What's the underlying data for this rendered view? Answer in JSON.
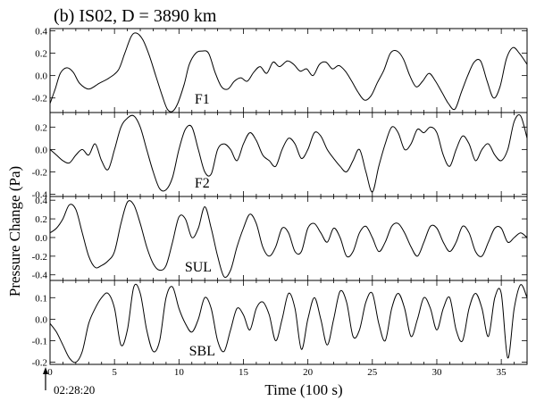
{
  "chart_data": {
    "type": "line",
    "title": "(b) IS02, D = 3890 km",
    "xlabel": "Time (100 s)",
    "ylabel": "Pressure Change (Pa)",
    "start_time": "02:28:20",
    "xlim": [
      0,
      37
    ],
    "xticks": [
      0,
      5,
      10,
      15,
      20,
      25,
      30,
      35
    ],
    "panels": [
      {
        "name": "F1",
        "ylim": [
          -0.33,
          0.42
        ],
        "yticks": [
          -0.2,
          0,
          0.2,
          0.4
        ],
        "ytick_labels": [
          "-0.2",
          "0.0",
          "0.2",
          "0.4"
        ],
        "x": [
          0,
          0.4,
          0.8,
          1.3,
          1.8,
          2.3,
          3,
          3.8,
          4.6,
          5.3,
          5.8,
          6.3,
          6.7,
          7.2,
          7.7,
          8.2,
          8.7,
          9.1,
          9.5,
          9.9,
          10.4,
          10.8,
          11.3,
          11.8,
          12.3,
          12.8,
          13.3,
          13.8,
          14.3,
          14.8,
          15.3,
          15.8,
          16.3,
          16.8,
          17.3,
          17.8,
          18.4,
          18.9,
          19.4,
          19.9,
          20.4,
          20.9,
          21.4,
          21.9,
          22.4,
          22.9,
          23.4,
          23.9,
          24.4,
          24.9,
          25.4,
          25.9,
          26.4,
          26.9,
          27.4,
          27.9,
          28.4,
          28.9,
          29.4,
          29.9,
          30.4,
          30.9,
          31.4,
          31.9,
          32.4,
          32.9,
          33.4,
          33.9,
          34.4,
          34.9,
          35.4,
          35.9,
          36.4,
          37
        ],
        "y": [
          -0.25,
          -0.12,
          0.02,
          0.07,
          0.03,
          -0.07,
          -0.12,
          -0.07,
          -0.02,
          0.05,
          0.2,
          0.35,
          0.38,
          0.32,
          0.18,
          0.0,
          -0.18,
          -0.3,
          -0.32,
          -0.25,
          -0.08,
          0.1,
          0.2,
          0.22,
          0.2,
          0.03,
          -0.1,
          -0.12,
          -0.05,
          -0.02,
          -0.05,
          0.03,
          0.08,
          0.02,
          0.12,
          0.08,
          0.13,
          0.1,
          0.04,
          0.06,
          0.0,
          0.1,
          0.12,
          0.06,
          0.09,
          0.04,
          -0.05,
          -0.15,
          -0.22,
          -0.18,
          -0.06,
          0.05,
          0.2,
          0.22,
          0.15,
          0.0,
          -0.1,
          -0.05,
          0.02,
          -0.05,
          -0.15,
          -0.25,
          -0.3,
          -0.15,
          0.0,
          0.12,
          0.13,
          -0.05,
          -0.2,
          -0.1,
          0.15,
          0.25,
          0.2,
          0.1
        ]
      },
      {
        "name": "F2",
        "ylim": [
          -0.42,
          0.33
        ],
        "yticks": [
          -0.4,
          -0.2,
          0,
          0.2
        ],
        "ytick_labels": [
          "-0.4",
          "-0.2",
          "0.0",
          "0.2"
        ],
        "x": [
          0,
          0.5,
          1,
          1.5,
          2,
          2.5,
          3,
          3.5,
          4,
          4.5,
          5,
          5.5,
          6,
          6.5,
          7,
          7.5,
          8,
          8.5,
          9,
          9.5,
          10,
          10.5,
          11,
          11.5,
          12,
          12.5,
          13,
          13.5,
          14,
          14.5,
          15,
          15.5,
          16,
          16.5,
          17,
          17.5,
          18,
          18.5,
          19,
          19.5,
          20,
          20.5,
          21,
          21.5,
          22,
          22.5,
          23,
          23.5,
          24,
          24.5,
          25,
          25.5,
          26,
          26.5,
          27,
          27.5,
          28,
          28.5,
          29,
          29.5,
          30,
          30.5,
          31,
          31.5,
          32,
          32.5,
          33,
          33.5,
          34,
          34.5,
          35,
          35.5,
          36,
          36.5,
          37
        ],
        "y": [
          0.0,
          -0.05,
          -0.1,
          -0.12,
          -0.05,
          0.0,
          -0.05,
          0.05,
          -0.1,
          -0.18,
          0.0,
          0.2,
          0.28,
          0.3,
          0.2,
          0.0,
          -0.2,
          -0.35,
          -0.36,
          -0.25,
          0.0,
          0.18,
          0.2,
          0.0,
          -0.2,
          -0.22,
          0.0,
          0.05,
          0.0,
          -0.1,
          0.05,
          0.15,
          0.08,
          -0.05,
          -0.1,
          -0.15,
          0.0,
          0.1,
          0.05,
          -0.08,
          0.0,
          0.15,
          0.12,
          0.0,
          -0.08,
          -0.15,
          -0.2,
          -0.1,
          0.0,
          -0.2,
          -0.38,
          -0.15,
          0.05,
          0.2,
          0.15,
          0.0,
          0.05,
          0.18,
          0.15,
          0.2,
          0.15,
          -0.05,
          -0.15,
          0.0,
          0.12,
          0.05,
          -0.1,
          0.0,
          0.05,
          -0.05,
          -0.1,
          0.0,
          0.25,
          0.3,
          0.1
        ]
      },
      {
        "name": "SUL",
        "ylim": [
          -0.46,
          0.44
        ],
        "yticks": [
          -0.4,
          -0.2,
          0,
          0.2,
          0.4
        ],
        "ytick_labels": [
          "-0.4",
          "-0.2",
          "0.0",
          "0.2",
          "0.4"
        ],
        "x": [
          0,
          0.5,
          1,
          1.5,
          2,
          2.5,
          3,
          3.5,
          4,
          4.5,
          5,
          5.5,
          6,
          6.5,
          7,
          7.5,
          8,
          8.5,
          9,
          9.5,
          10,
          10.5,
          11,
          11.5,
          12,
          12.5,
          13,
          13.5,
          14,
          14.5,
          15,
          15.5,
          16,
          16.5,
          17,
          17.5,
          18,
          18.5,
          19,
          19.5,
          20,
          20.5,
          21,
          21.5,
          22,
          22.5,
          23,
          23.5,
          24,
          24.5,
          25,
          25.5,
          26,
          26.5,
          27,
          27.5,
          28,
          28.5,
          29,
          29.5,
          30,
          30.5,
          31,
          31.5,
          32,
          32.5,
          33,
          33.5,
          34,
          34.5,
          35,
          35.5,
          36,
          36.5,
          37
        ],
        "y": [
          0.05,
          0.1,
          0.2,
          0.35,
          0.3,
          0.05,
          -0.2,
          -0.32,
          -0.3,
          -0.25,
          -0.15,
          0.15,
          0.38,
          0.35,
          0.15,
          -0.1,
          -0.28,
          -0.35,
          -0.3,
          -0.05,
          0.22,
          0.2,
          0.0,
          0.1,
          0.33,
          0.1,
          -0.2,
          -0.42,
          -0.35,
          -0.1,
          0.1,
          0.25,
          0.15,
          -0.1,
          -0.2,
          -0.1,
          0.1,
          0.05,
          -0.15,
          -0.15,
          0.1,
          0.15,
          0.05,
          -0.05,
          0.1,
          0.0,
          -0.2,
          -0.15,
          0.05,
          0.12,
          0.0,
          -0.15,
          -0.05,
          0.12,
          0.15,
          0.05,
          -0.1,
          -0.2,
          -0.05,
          0.12,
          0.1,
          -0.05,
          -0.15,
          -0.05,
          0.12,
          0.05,
          -0.15,
          -0.2,
          -0.05,
          0.1,
          0.1,
          -0.05,
          0.0,
          0.05,
          0.0
        ]
      },
      {
        "name": "SBL",
        "ylim": [
          -0.21,
          0.18
        ],
        "yticks": [
          -0.2,
          -0.1,
          0,
          0.1
        ],
        "ytick_labels": [
          "-0.2",
          "-0.1",
          "0.0",
          "0.1"
        ],
        "x": [
          0,
          0.5,
          1,
          1.5,
          2,
          2.5,
          3,
          3.5,
          4,
          4.5,
          5,
          5.5,
          6,
          6.5,
          7,
          7.5,
          8,
          8.5,
          9,
          9.5,
          10,
          10.5,
          11,
          11.5,
          12,
          12.5,
          13,
          13.5,
          14,
          14.5,
          15,
          15.5,
          16,
          16.5,
          17,
          17.5,
          18,
          18.5,
          19,
          19.5,
          20,
          20.5,
          21,
          21.5,
          22,
          22.5,
          23,
          23.5,
          24,
          24.5,
          25,
          25.5,
          26,
          26.5,
          27,
          27.5,
          28,
          28.5,
          29,
          29.5,
          30,
          30.5,
          31,
          31.5,
          32,
          32.5,
          33,
          33.5,
          34,
          34.5,
          35,
          35.5,
          36,
          36.5,
          37
        ],
        "y": [
          -0.02,
          -0.06,
          -0.12,
          -0.18,
          -0.2,
          -0.15,
          -0.02,
          0.05,
          0.1,
          0.12,
          0.05,
          -0.12,
          -0.05,
          0.15,
          0.12,
          -0.05,
          -0.15,
          -0.1,
          0.1,
          0.15,
          0.05,
          -0.02,
          -0.06,
          0.0,
          0.1,
          0.05,
          -0.1,
          -0.15,
          -0.05,
          0.05,
          0.02,
          -0.05,
          0.05,
          0.08,
          0.02,
          -0.1,
          0.0,
          0.12,
          0.05,
          -0.14,
          0.0,
          0.1,
          0.0,
          -0.12,
          0.0,
          0.13,
          0.08,
          -0.08,
          -0.05,
          0.08,
          0.12,
          -0.02,
          -0.1,
          0.05,
          0.12,
          0.05,
          -0.08,
          0.0,
          0.1,
          0.05,
          -0.05,
          0.05,
          0.1,
          -0.05,
          -0.1,
          0.05,
          0.12,
          0.05,
          -0.08,
          0.1,
          0.12,
          -0.18,
          0.05,
          0.16,
          0.1
        ]
      }
    ]
  }
}
